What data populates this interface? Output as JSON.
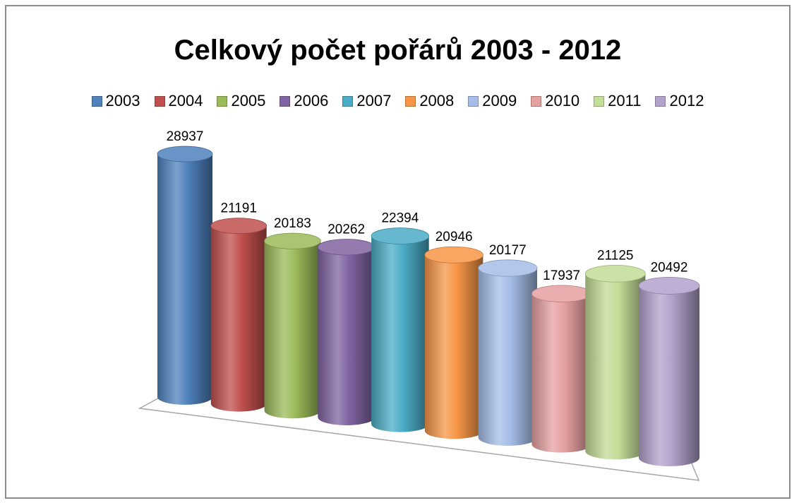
{
  "chart_data": {
    "type": "bar",
    "style": "3d-cylinder",
    "title": "Celkový počet pořárů 2003 - 2012",
    "xlabel": "",
    "ylabel": "",
    "grid": false,
    "legend_position": "top",
    "categories": [
      ""
    ],
    "series": [
      {
        "name": "2003",
        "value": 28937,
        "color": "#4f81bd"
      },
      {
        "name": "2004",
        "value": 21191,
        "color": "#c0504d"
      },
      {
        "name": "2005",
        "value": 20183,
        "color": "#9bbb59"
      },
      {
        "name": "2006",
        "value": 20262,
        "color": "#8064a2"
      },
      {
        "name": "2007",
        "value": 22394,
        "color": "#4bacc6"
      },
      {
        "name": "2008",
        "value": 20946,
        "color": "#f79646"
      },
      {
        "name": "2009",
        "value": 20177,
        "color": "#a5bde8"
      },
      {
        "name": "2010",
        "value": 17937,
        "color": "#e6a0a0"
      },
      {
        "name": "2011",
        "value": 21125,
        "color": "#c3dc96"
      },
      {
        "name": "2012",
        "value": 20492,
        "color": "#b3a2cc"
      }
    ]
  }
}
